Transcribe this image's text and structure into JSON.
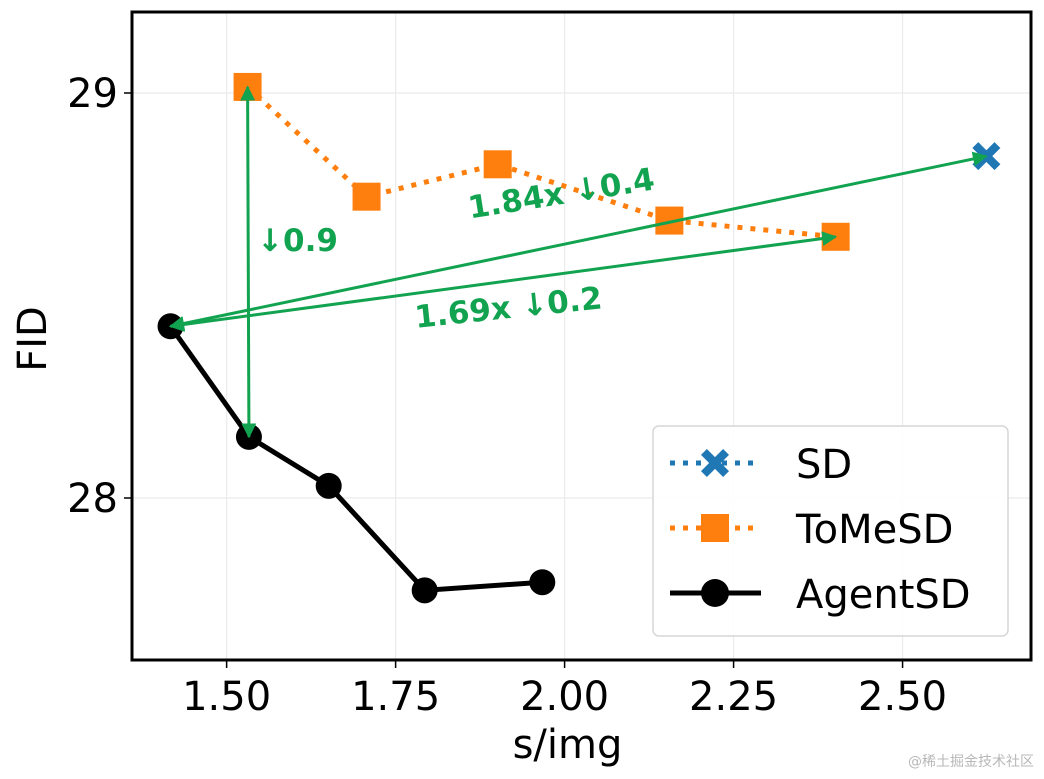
{
  "chart_data": {
    "type": "line",
    "title": "",
    "xlabel": "s/img",
    "ylabel": "FID",
    "xlim": [
      1.36,
      2.69
    ],
    "ylim": [
      27.6,
      29.2
    ],
    "xticks": [
      1.5,
      1.75,
      2.0,
      2.25,
      2.5
    ],
    "xtick_labels": [
      "1.50",
      "1.75",
      "2.00",
      "2.25",
      "2.50"
    ],
    "yticks": [
      28,
      29
    ],
    "ytick_labels": [
      "28",
      "29"
    ],
    "grid": true,
    "legend_position": "bottom-right",
    "series": [
      {
        "name": "SD",
        "color": "#1f77b4",
        "marker": "X",
        "linestyle": "dotted",
        "x": [
          2.624
        ],
        "y": [
          28.844
        ]
      },
      {
        "name": "ToMeSD",
        "color": "#ff7f0e",
        "marker": "square",
        "linestyle": "dotted",
        "x": [
          1.531,
          1.707,
          1.901,
          2.155,
          2.401
        ],
        "y": [
          29.015,
          28.744,
          28.824,
          28.685,
          28.645
        ]
      },
      {
        "name": "AgentSD",
        "color": "#000000",
        "marker": "circle",
        "linestyle": "solid",
        "x": [
          1.417,
          1.533,
          1.651,
          1.793,
          1.967
        ],
        "y": [
          28.424,
          28.151,
          28.03,
          27.772,
          27.792
        ]
      }
    ],
    "annotations": [
      {
        "text": "↓0.9",
        "color": "#12a350",
        "arrow_from": [
          1.533,
          28.151
        ],
        "arrow_to": [
          1.531,
          29.015
        ],
        "double_headed": true,
        "text_at": [
          1.545,
          28.61
        ],
        "rotation": 0
      },
      {
        "text": "1.84x ↓0.4",
        "color": "#12a350",
        "arrow_from": [
          1.417,
          28.424
        ],
        "arrow_to": [
          2.624,
          28.844
        ],
        "double_headed": true,
        "text_at": [
          1.86,
          28.69
        ],
        "rotation": -9
      },
      {
        "text": "1.69x ↓0.2",
        "color": "#12a350",
        "arrow_from": [
          1.417,
          28.424
        ],
        "arrow_to": [
          2.401,
          28.645
        ],
        "double_headed": true,
        "text_at": [
          1.78,
          28.42
        ],
        "rotation": -6
      }
    ]
  },
  "watermark": "@稀土掘金技术社区"
}
